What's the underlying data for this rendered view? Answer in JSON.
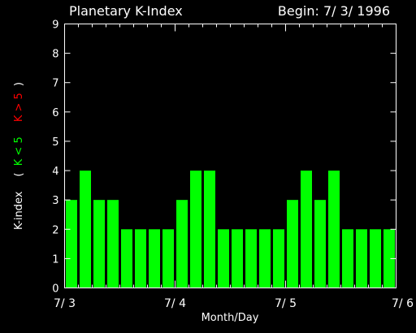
{
  "chart_data": {
    "type": "bar",
    "title": "Planetary K-Index",
    "begin_label": "Begin: 7/ 3/ 1996",
    "xlabel": "Month/Day",
    "ylabel": {
      "prefix": "K-index",
      "open": "(",
      "low": "K < 5",
      "high": "K > 5",
      "close": ")"
    },
    "ylim": [
      0,
      9
    ],
    "yticks": [
      0,
      1,
      2,
      3,
      4,
      5,
      6,
      7,
      8,
      9
    ],
    "xtick_labels": [
      "7/ 3",
      "7/ 4",
      "7/ 5",
      "7/ 6"
    ],
    "intervals_per_day": 8,
    "values": [
      3,
      4,
      3,
      3,
      2,
      2,
      2,
      2,
      3,
      4,
      4,
      2,
      2,
      2,
      2,
      2,
      3,
      4,
      3,
      4,
      2,
      2,
      2,
      2
    ],
    "threshold": 5,
    "colors": {
      "background": "#000000",
      "axes": "#ffffff",
      "low_bar": "#00ff00",
      "high_bar": "#ff0000",
      "low_label": "#00ff00",
      "high_label": "#ff0000"
    }
  }
}
